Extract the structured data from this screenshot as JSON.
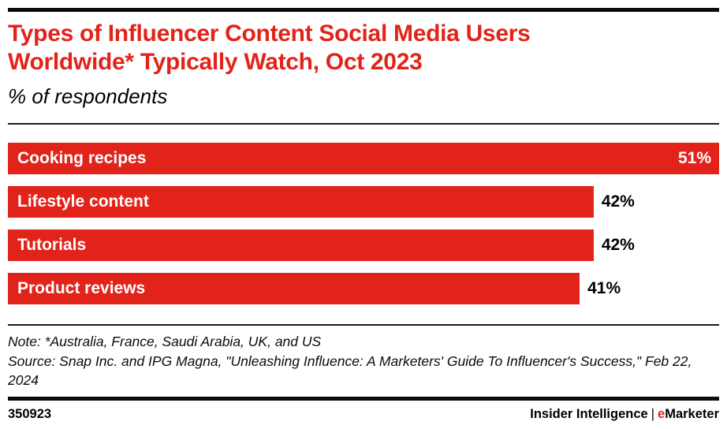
{
  "header": {
    "title_line1": "Types of Influencer Content Social Media Users",
    "title_line2": "Worldwide* Typically Watch, Oct 2023",
    "subtitle": "% of respondents"
  },
  "chart_data": {
    "type": "bar",
    "orientation": "horizontal",
    "title": "Types of Influencer Content Social Media Users Worldwide* Typically Watch, Oct 2023",
    "unit": "% of respondents",
    "categories": [
      "Cooking recipes",
      "Lifestyle content",
      "Tutorials",
      "Product reviews"
    ],
    "values": [
      51,
      42,
      42,
      41
    ],
    "value_labels": [
      "51%",
      "42%",
      "42%",
      "41%"
    ],
    "value_label_position": [
      "inside",
      "outside",
      "outside",
      "outside"
    ],
    "axis_max": 51,
    "bar_color": "#e2231a",
    "bar_label_color": "#ffffff",
    "grid": false,
    "legend": false
  },
  "footnotes": {
    "note": "Note: *Australia, France, Saudi Arabia, UK, and US",
    "source": "Source: Snap Inc. and IPG Magna, \"Unleashing Influence: A Marketers' Guide To Influencer's Success,\" Feb 22, 2024"
  },
  "footer": {
    "chart_id": "350923",
    "brand_left": "Insider Intelligence",
    "brand_separator": "|",
    "brand_accent": "e",
    "brand_rest": "Marketer"
  },
  "colors": {
    "accent": "#e2231a",
    "text": "#000000",
    "rule": "#0b0b0b"
  }
}
